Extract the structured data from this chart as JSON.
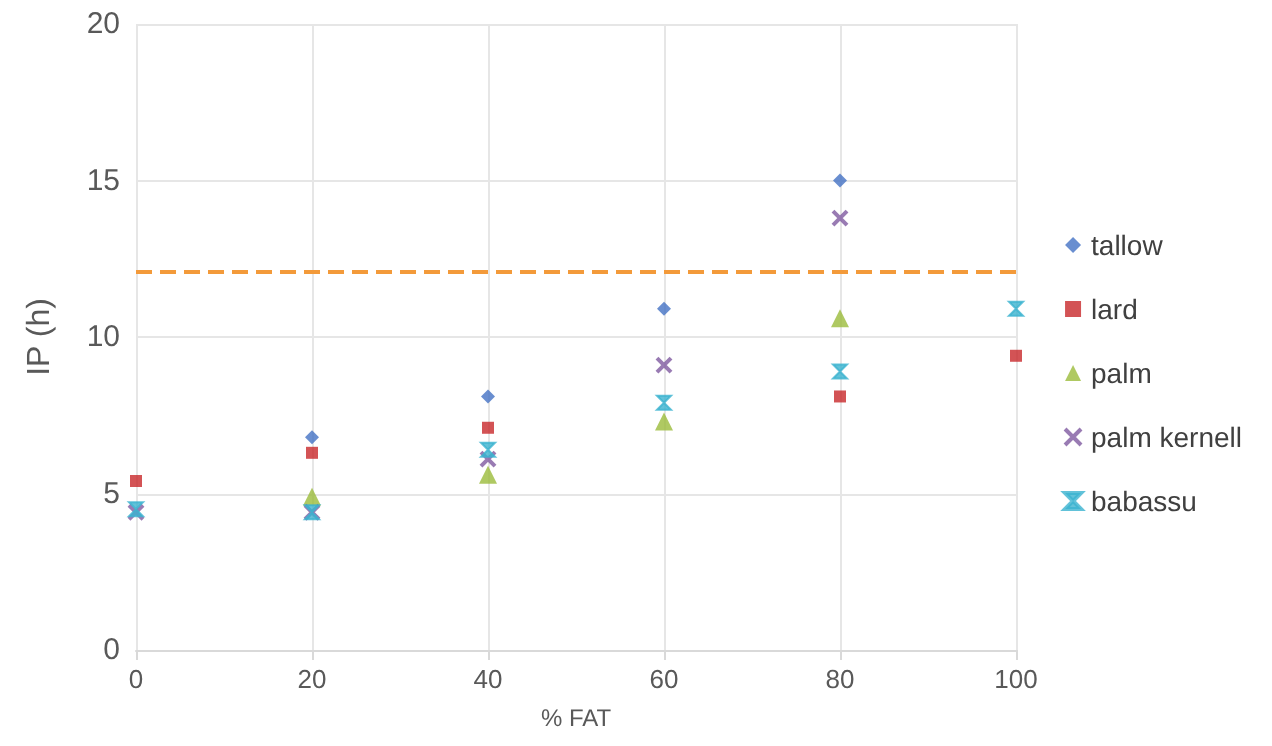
{
  "chart_data": {
    "type": "scatter",
    "xlabel": "% FAT",
    "ylabel": "IP (h)",
    "x": [
      0,
      20,
      40,
      60,
      80,
      100
    ],
    "series": [
      {
        "name": "tallow",
        "color": "#4472c4",
        "marker": "diamond",
        "values": [
          null,
          6.8,
          8.1,
          10.9,
          15.0,
          null
        ]
      },
      {
        "name": "lard",
        "color": "#c8282a",
        "marker": "square",
        "values": [
          5.4,
          6.3,
          7.1,
          null,
          8.1,
          9.4
        ]
      },
      {
        "name": "palm",
        "color": "#9bbb3b",
        "marker": "triangle",
        "values": [
          null,
          4.9,
          5.6,
          7.3,
          10.6,
          null
        ]
      },
      {
        "name": "palm kernell",
        "color": "#7f5aa0",
        "marker": "cross",
        "values": [
          4.4,
          4.4,
          6.1,
          9.1,
          13.8,
          null
        ]
      },
      {
        "name": "babassu",
        "color": "#3bb3d0",
        "marker": "star",
        "values": [
          4.5,
          4.4,
          6.4,
          7.9,
          8.9,
          10.9
        ]
      }
    ],
    "xlim": [
      0,
      100
    ],
    "xticks": [
      0,
      20,
      40,
      60,
      80,
      100
    ],
    "ylim": [
      0,
      20
    ],
    "yticks": [
      0,
      5,
      10,
      15,
      20
    ],
    "ref_lines": [
      {
        "axis": "y",
        "value": 12.1,
        "color": "#f39a3a",
        "line_style": "dashed"
      }
    ],
    "grid": true,
    "legend": "right"
  }
}
